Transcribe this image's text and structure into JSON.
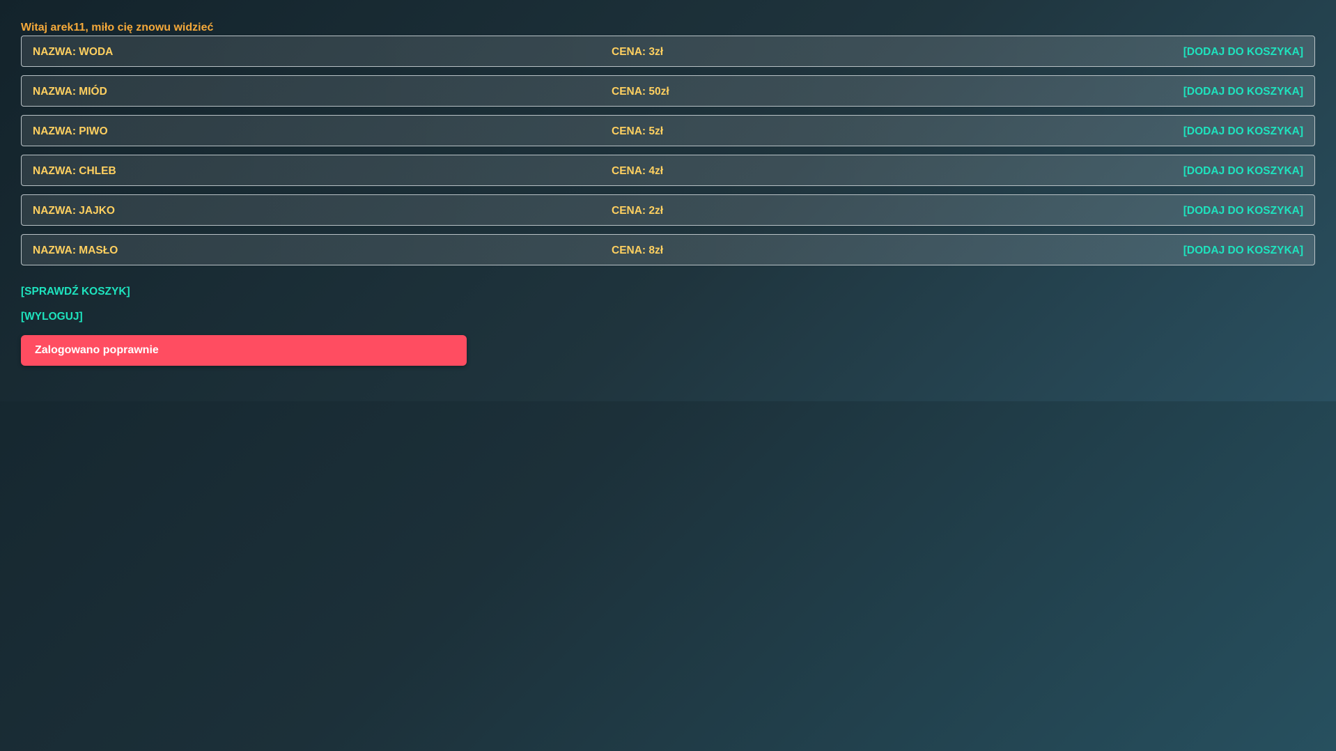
{
  "greeting": "Witaj arek11, miło cię znowu widzieć",
  "products": [
    {
      "name": "NAZWA: WODA",
      "price": "CENA: 3zł",
      "action": "[DODAJ DO KOSZYKA]"
    },
    {
      "name": "NAZWA: MIÓD",
      "price": "CENA: 50zł",
      "action": "[DODAJ DO KOSZYKA]"
    },
    {
      "name": "NAZWA: PIWO",
      "price": "CENA: 5zł",
      "action": "[DODAJ DO KOSZYKA]"
    },
    {
      "name": "NAZWA: CHLEB",
      "price": "CENA: 4zł",
      "action": "[DODAJ DO KOSZYKA]"
    },
    {
      "name": "NAZWA: JAJKO",
      "price": "CENA: 2zł",
      "action": "[DODAJ DO KOSZYKA]"
    },
    {
      "name": "NAZWA: MASŁO",
      "price": "CENA: 8zł",
      "action": "[DODAJ DO KOSZYKA]"
    }
  ],
  "links": {
    "check_cart": "[SPRAWDŹ KOSZYK]",
    "logout": "[WYLOGUJ]"
  },
  "alert": {
    "message": "Zalogowano poprawnie",
    "color": "#ff4d61"
  },
  "colors": {
    "accent": "#1ee3be",
    "label": "#ffd060",
    "greeting": "#f5a93a"
  }
}
